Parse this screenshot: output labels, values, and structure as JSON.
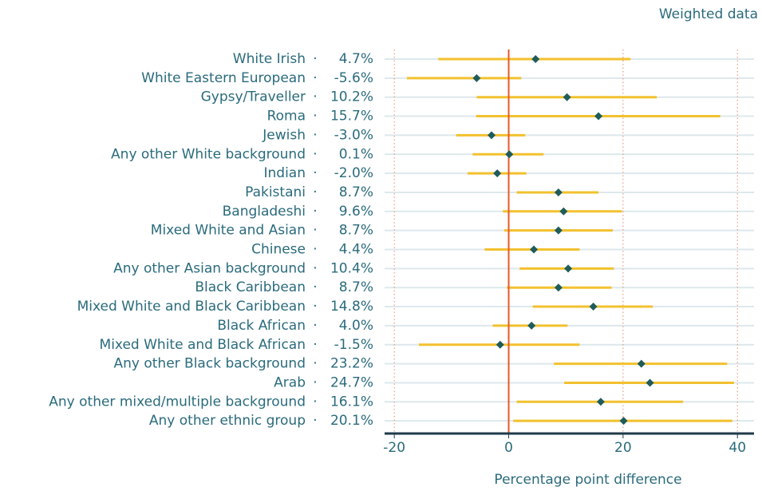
{
  "chart_data": {
    "type": "forest",
    "annotation": "Weighted data",
    "x_label": "Percentage point difference",
    "categories": [
      "White Irish",
      "White Eastern European",
      "Gypsy/Traveller",
      "Roma",
      "Jewish",
      "Any other White background",
      "Indian",
      "Pakistani",
      "Bangladeshi",
      "Mixed White and Asian",
      "Chinese",
      "Any other Asian background",
      "Black Caribbean",
      "Mixed White and Black Caribbean",
      "Black African",
      "Mixed White and Black African",
      "Any other Black background",
      "Arab",
      "Any other mixed/multiple background",
      "Any other ethnic group"
    ],
    "values": [
      4.7,
      -5.6,
      10.2,
      15.7,
      -3.0,
      0.1,
      -2.0,
      8.7,
      9.6,
      8.7,
      4.4,
      10.4,
      8.7,
      14.8,
      4.0,
      -1.5,
      23.2,
      24.7,
      16.1,
      20.1
    ],
    "value_labels": [
      "4.7%",
      "-5.6%",
      "10.2%",
      "15.7%",
      "-3.0%",
      "0.1%",
      "-2.0%",
      "8.7%",
      "9.6%",
      "8.7%",
      "4.4%",
      "10.4%",
      "8.7%",
      "14.8%",
      "4.0%",
      "-1.5%",
      "23.2%",
      "24.7%",
      "16.1%",
      "20.1%"
    ],
    "lower": [
      -12.3,
      -17.8,
      -5.6,
      -5.7,
      -9.2,
      -6.3,
      -7.2,
      1.4,
      -1.0,
      -0.8,
      -4.2,
      1.9,
      -0.3,
      4.2,
      -2.8,
      -15.7,
      7.9,
      9.7,
      1.4,
      0.8
    ],
    "upper": [
      21.3,
      2.2,
      25.9,
      37.0,
      2.9,
      6.1,
      3.1,
      15.7,
      19.8,
      18.2,
      12.4,
      18.4,
      18.0,
      25.2,
      10.3,
      12.4,
      38.2,
      39.4,
      30.5,
      39.1
    ],
    "point_color": "#1f5c5c",
    "ci_color": "#f2c12e",
    "reference_color": "#e8572a",
    "xlim": [
      -21.7,
      42.9
    ],
    "xticks": [
      -20,
      0,
      20,
      40
    ],
    "grid": true
  }
}
